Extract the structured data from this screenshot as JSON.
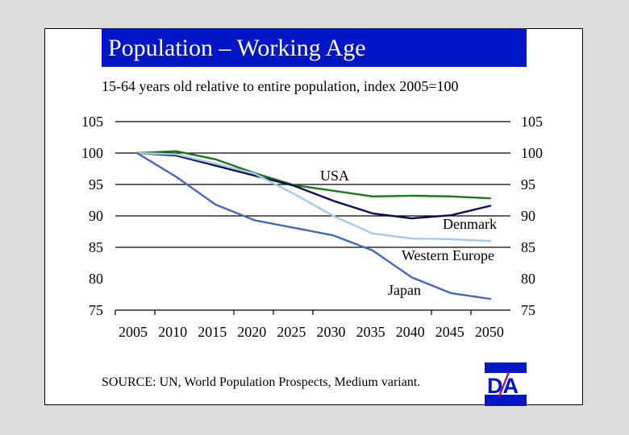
{
  "slide": {
    "title": "Population – Working Age",
    "subtitle": "15-64 years old relative to entire population, index 2005=100",
    "source": "SOURCE: UN, World Population Prospects, Medium variant.",
    "logo_text": "DA",
    "colors": {
      "title_bg": "#0016c7",
      "background": "#dcdcdc",
      "panel": "#ffffff",
      "logo_slash": "#a0206e"
    }
  },
  "chart_data": {
    "type": "line",
    "title": "Population – Working Age",
    "subtitle": "15-64 years old relative to entire population, index 2005=100",
    "xlabel": "",
    "ylabel": "",
    "x": [
      2005,
      2010,
      2015,
      2020,
      2025,
      2030,
      2035,
      2040,
      2045,
      2050
    ],
    "x_tick_labels": [
      "2005",
      "2010",
      "2015",
      "2020",
      "2025",
      "2030",
      "2035",
      "2040",
      "2045",
      "2050"
    ],
    "y_tick_labels": [
      "105",
      "100",
      "95",
      "90",
      "85",
      "80",
      "75"
    ],
    "y_ticks": [
      105,
      100,
      95,
      90,
      85,
      80,
      75
    ],
    "ylim": [
      75,
      105
    ],
    "gridlines_at": [
      105,
      100,
      95,
      90,
      85
    ],
    "grid": true,
    "y_axis_both_sides": true,
    "series": [
      {
        "name": "USA",
        "color": "#1a7a1a",
        "values": [
          100,
          100.3,
          99.0,
          96.8,
          94.9,
          94.0,
          93.1,
          93.2,
          93.1,
          92.8
        ]
      },
      {
        "name": "Denmark",
        "color": "#0a0a5a",
        "values": [
          100,
          99.6,
          98.0,
          96.4,
          94.8,
          92.4,
          90.4,
          89.6,
          90.1,
          91.6
        ]
      },
      {
        "name": "Western Europe",
        "color": "#a8c8e8",
        "values": [
          100,
          99.8,
          98.3,
          96.7,
          93.5,
          90.0,
          87.2,
          86.4,
          86.3,
          86.0
        ]
      },
      {
        "name": "Japan",
        "color": "#4466c0",
        "values": [
          100,
          96.2,
          91.8,
          89.3,
          88.1,
          86.9,
          84.5,
          80.2,
          77.7,
          76.8
        ]
      }
    ],
    "legend": "inline-labels"
  }
}
